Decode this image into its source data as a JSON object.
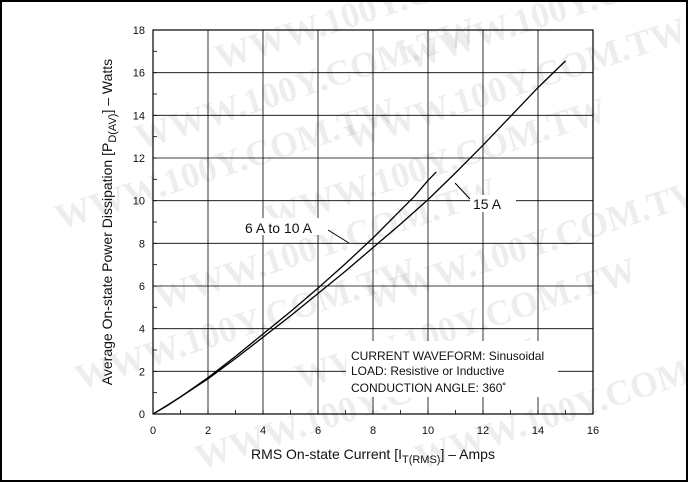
{
  "watermark": "WWW.100Y.COM.TW",
  "chart_data": {
    "type": "line",
    "xlabel_main": "RMS On-state Current [I",
    "xlabel_sub": "T(RMS)",
    "xlabel_tail": "] – Amps",
    "ylabel_main": "Average On-state Power Dissipation [P",
    "ylabel_sub": "D(AV)",
    "ylabel_tail": "] – Watts",
    "xlim": [
      0,
      16
    ],
    "ylim": [
      0,
      18
    ],
    "x_ticks": [
      0,
      2,
      4,
      6,
      8,
      10,
      12,
      14,
      16
    ],
    "y_ticks": [
      0,
      2,
      4,
      6,
      8,
      10,
      12,
      14,
      16,
      18
    ],
    "grid": true,
    "series": [
      {
        "name": "6 A to 10 A",
        "x": [
          0,
          0.5,
          1,
          2,
          3,
          4,
          5,
          6,
          7,
          8,
          9,
          9.5,
          10,
          10.3
        ],
        "y": [
          0,
          0.38,
          0.8,
          1.7,
          2.7,
          3.75,
          4.8,
          5.9,
          7.05,
          8.25,
          9.55,
          10.2,
          10.95,
          11.35
        ]
      },
      {
        "name": "15 A",
        "x": [
          0,
          0.5,
          1,
          2,
          3,
          4,
          5,
          6,
          7,
          8,
          9,
          10,
          11,
          12,
          13,
          14,
          15
        ],
        "y": [
          0,
          0.4,
          0.8,
          1.65,
          2.6,
          3.6,
          4.6,
          5.65,
          6.7,
          7.8,
          8.9,
          10.05,
          11.3,
          12.6,
          13.95,
          15.3,
          16.55
        ]
      }
    ],
    "annotation_lines": [
      "CURRENT WAVEFORM: Sinusoidal",
      "LOAD:  Resistive or Inductive",
      "CONDUCTION ANGLE: 360˚"
    ]
  }
}
